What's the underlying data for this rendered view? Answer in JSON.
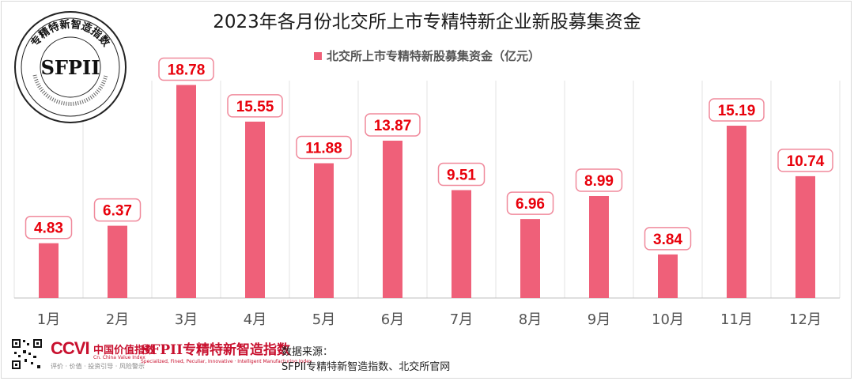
{
  "title": "2023年各月份北交所上市专精特新企业新股募集资金",
  "legend": {
    "label": "北交所上市专精特新股募集资金（亿元）",
    "color": "#ef6079"
  },
  "chart_data": {
    "type": "bar",
    "categories": [
      "1月",
      "2月",
      "3月",
      "4月",
      "5月",
      "6月",
      "7月",
      "8月",
      "9月",
      "10月",
      "11月",
      "12月"
    ],
    "series": [
      {
        "name": "北交所上市专精特新股募集资金（亿元）",
        "values": [
          4.83,
          6.37,
          18.78,
          15.55,
          11.88,
          13.87,
          9.51,
          6.96,
          8.99,
          3.84,
          15.19,
          10.74
        ]
      }
    ],
    "value_labels": [
      "4.83",
      "6.37",
      "18.78",
      "15.55",
      "11.88",
      "13.87",
      "9.51",
      "6.96",
      "8.99",
      "3.84",
      "15.19",
      "10.74"
    ],
    "ylim": [
      0,
      20
    ],
    "grid": true,
    "legend_position": "top-center",
    "bar_color": "#ef6079",
    "label_color": "#e8000b"
  },
  "seal": {
    "text": "SFPII",
    "ring_text": "专精特新智造指数"
  },
  "footer": {
    "ccvi_logo": "CCVI",
    "ccvi_cn": "中国价值指数",
    "ccvi_en": "Cn. China Value Index",
    "ccvi_tag": "评价 · 价值 · 投资引导 · 风险警示",
    "sfpii_logo": "SFPII专精特新智造指数",
    "sfpii_en": "Specialized, Fined, Peculiar, Innovative · Intelligent Manufacturing Index",
    "source_title": "数据来源：",
    "source_text": "SFPII专精特新智造指数、北交所官网"
  }
}
